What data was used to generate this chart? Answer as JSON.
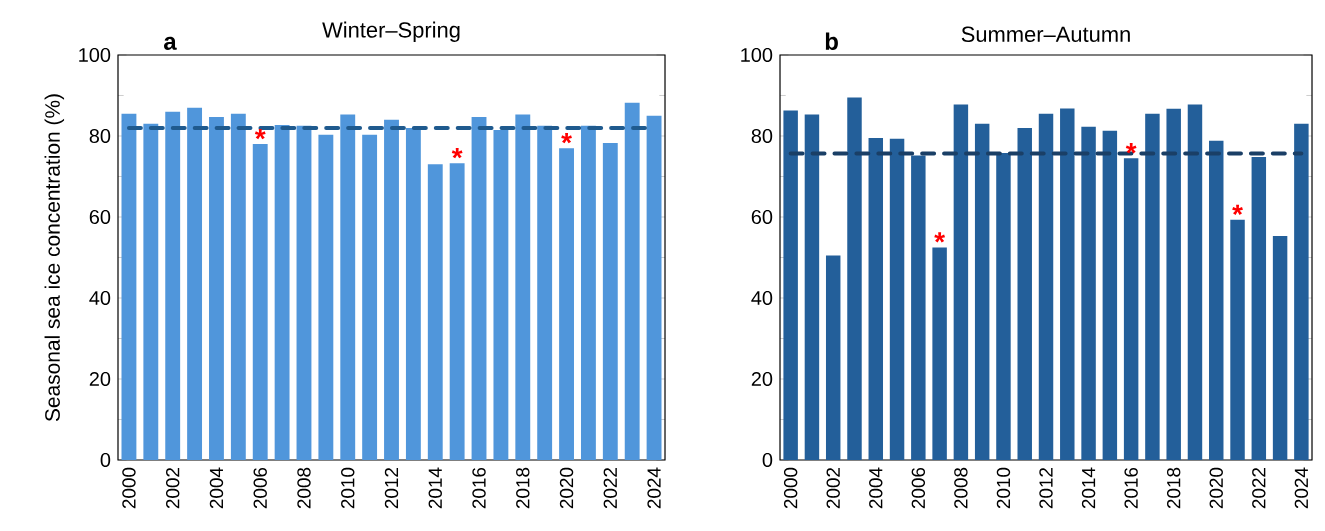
{
  "chart_data": [
    {
      "type": "bar",
      "title": "Winter–Spring",
      "ylabel": "Seasonal sea ice concentration (%)",
      "x": [
        2000,
        2001,
        2002,
        2003,
        2004,
        2005,
        2006,
        2007,
        2008,
        2009,
        2010,
        2011,
        2012,
        2013,
        2014,
        2015,
        2016,
        2017,
        2018,
        2019,
        2020,
        2021,
        2022,
        2023,
        2024
      ],
      "values": [
        85.5,
        83,
        86,
        87,
        84.7,
        85.5,
        78,
        82.7,
        82.5,
        80.3,
        85.3,
        80.3,
        84,
        82,
        73,
        73.3,
        84.7,
        81.5,
        85.3,
        82.5,
        77,
        82.5,
        78.3,
        88.2,
        85
      ],
      "color": "#5096db",
      "xlim": [
        1999.5,
        2024.5
      ],
      "xticks": [
        2000,
        2002,
        2004,
        2006,
        2008,
        2010,
        2012,
        2014,
        2016,
        2018,
        2020,
        2022,
        2024
      ],
      "ylim": [
        0,
        100
      ],
      "yticks": [
        0,
        20,
        40,
        60,
        80,
        100
      ],
      "ref_lines": [
        {
          "axis": "y",
          "value": 82,
          "color": "#1f5a8e",
          "line_style": "dashed"
        }
      ],
      "annotations": [
        "a",
        {
          "text": "*",
          "x": 2006,
          "y": 78
        },
        {
          "text": "*",
          "x": 2015,
          "y": 73.3
        },
        {
          "text": "*",
          "x": 2020,
          "y": 77
        }
      ]
    },
    {
      "type": "bar",
      "title": "Summer–Autumn",
      "x": [
        2000,
        2001,
        2002,
        2003,
        2004,
        2005,
        2006,
        2007,
        2008,
        2009,
        2010,
        2011,
        2012,
        2013,
        2014,
        2015,
        2016,
        2017,
        2018,
        2019,
        2020,
        2021,
        2022,
        2023,
        2024
      ],
      "values": [
        86.3,
        85.3,
        50.5,
        89.5,
        79.5,
        79.3,
        75.2,
        52.5,
        87.8,
        83,
        75.8,
        82,
        85.5,
        86.8,
        82.3,
        81.3,
        74.5,
        85.5,
        86.7,
        87.8,
        78.8,
        59.3,
        74.8,
        55.3,
        83
      ],
      "color": "#235f9a",
      "xlim": [
        1999.5,
        2024.5
      ],
      "xticks": [
        2000,
        2002,
        2004,
        2006,
        2008,
        2010,
        2012,
        2014,
        2016,
        2018,
        2020,
        2022,
        2024
      ],
      "ylim": [
        0,
        100
      ],
      "yticks": [
        0,
        20,
        40,
        60,
        80,
        100
      ],
      "ref_lines": [
        {
          "axis": "y",
          "value": 75.7,
          "color": "#1a3f66",
          "line_style": "dashed"
        }
      ],
      "annotations": [
        "b",
        {
          "text": "*",
          "x": 2007,
          "y": 52.5
        },
        {
          "text": "*",
          "x": 2016,
          "y": 74.5
        },
        {
          "text": "*",
          "x": 2021,
          "y": 59.3
        }
      ]
    }
  ]
}
